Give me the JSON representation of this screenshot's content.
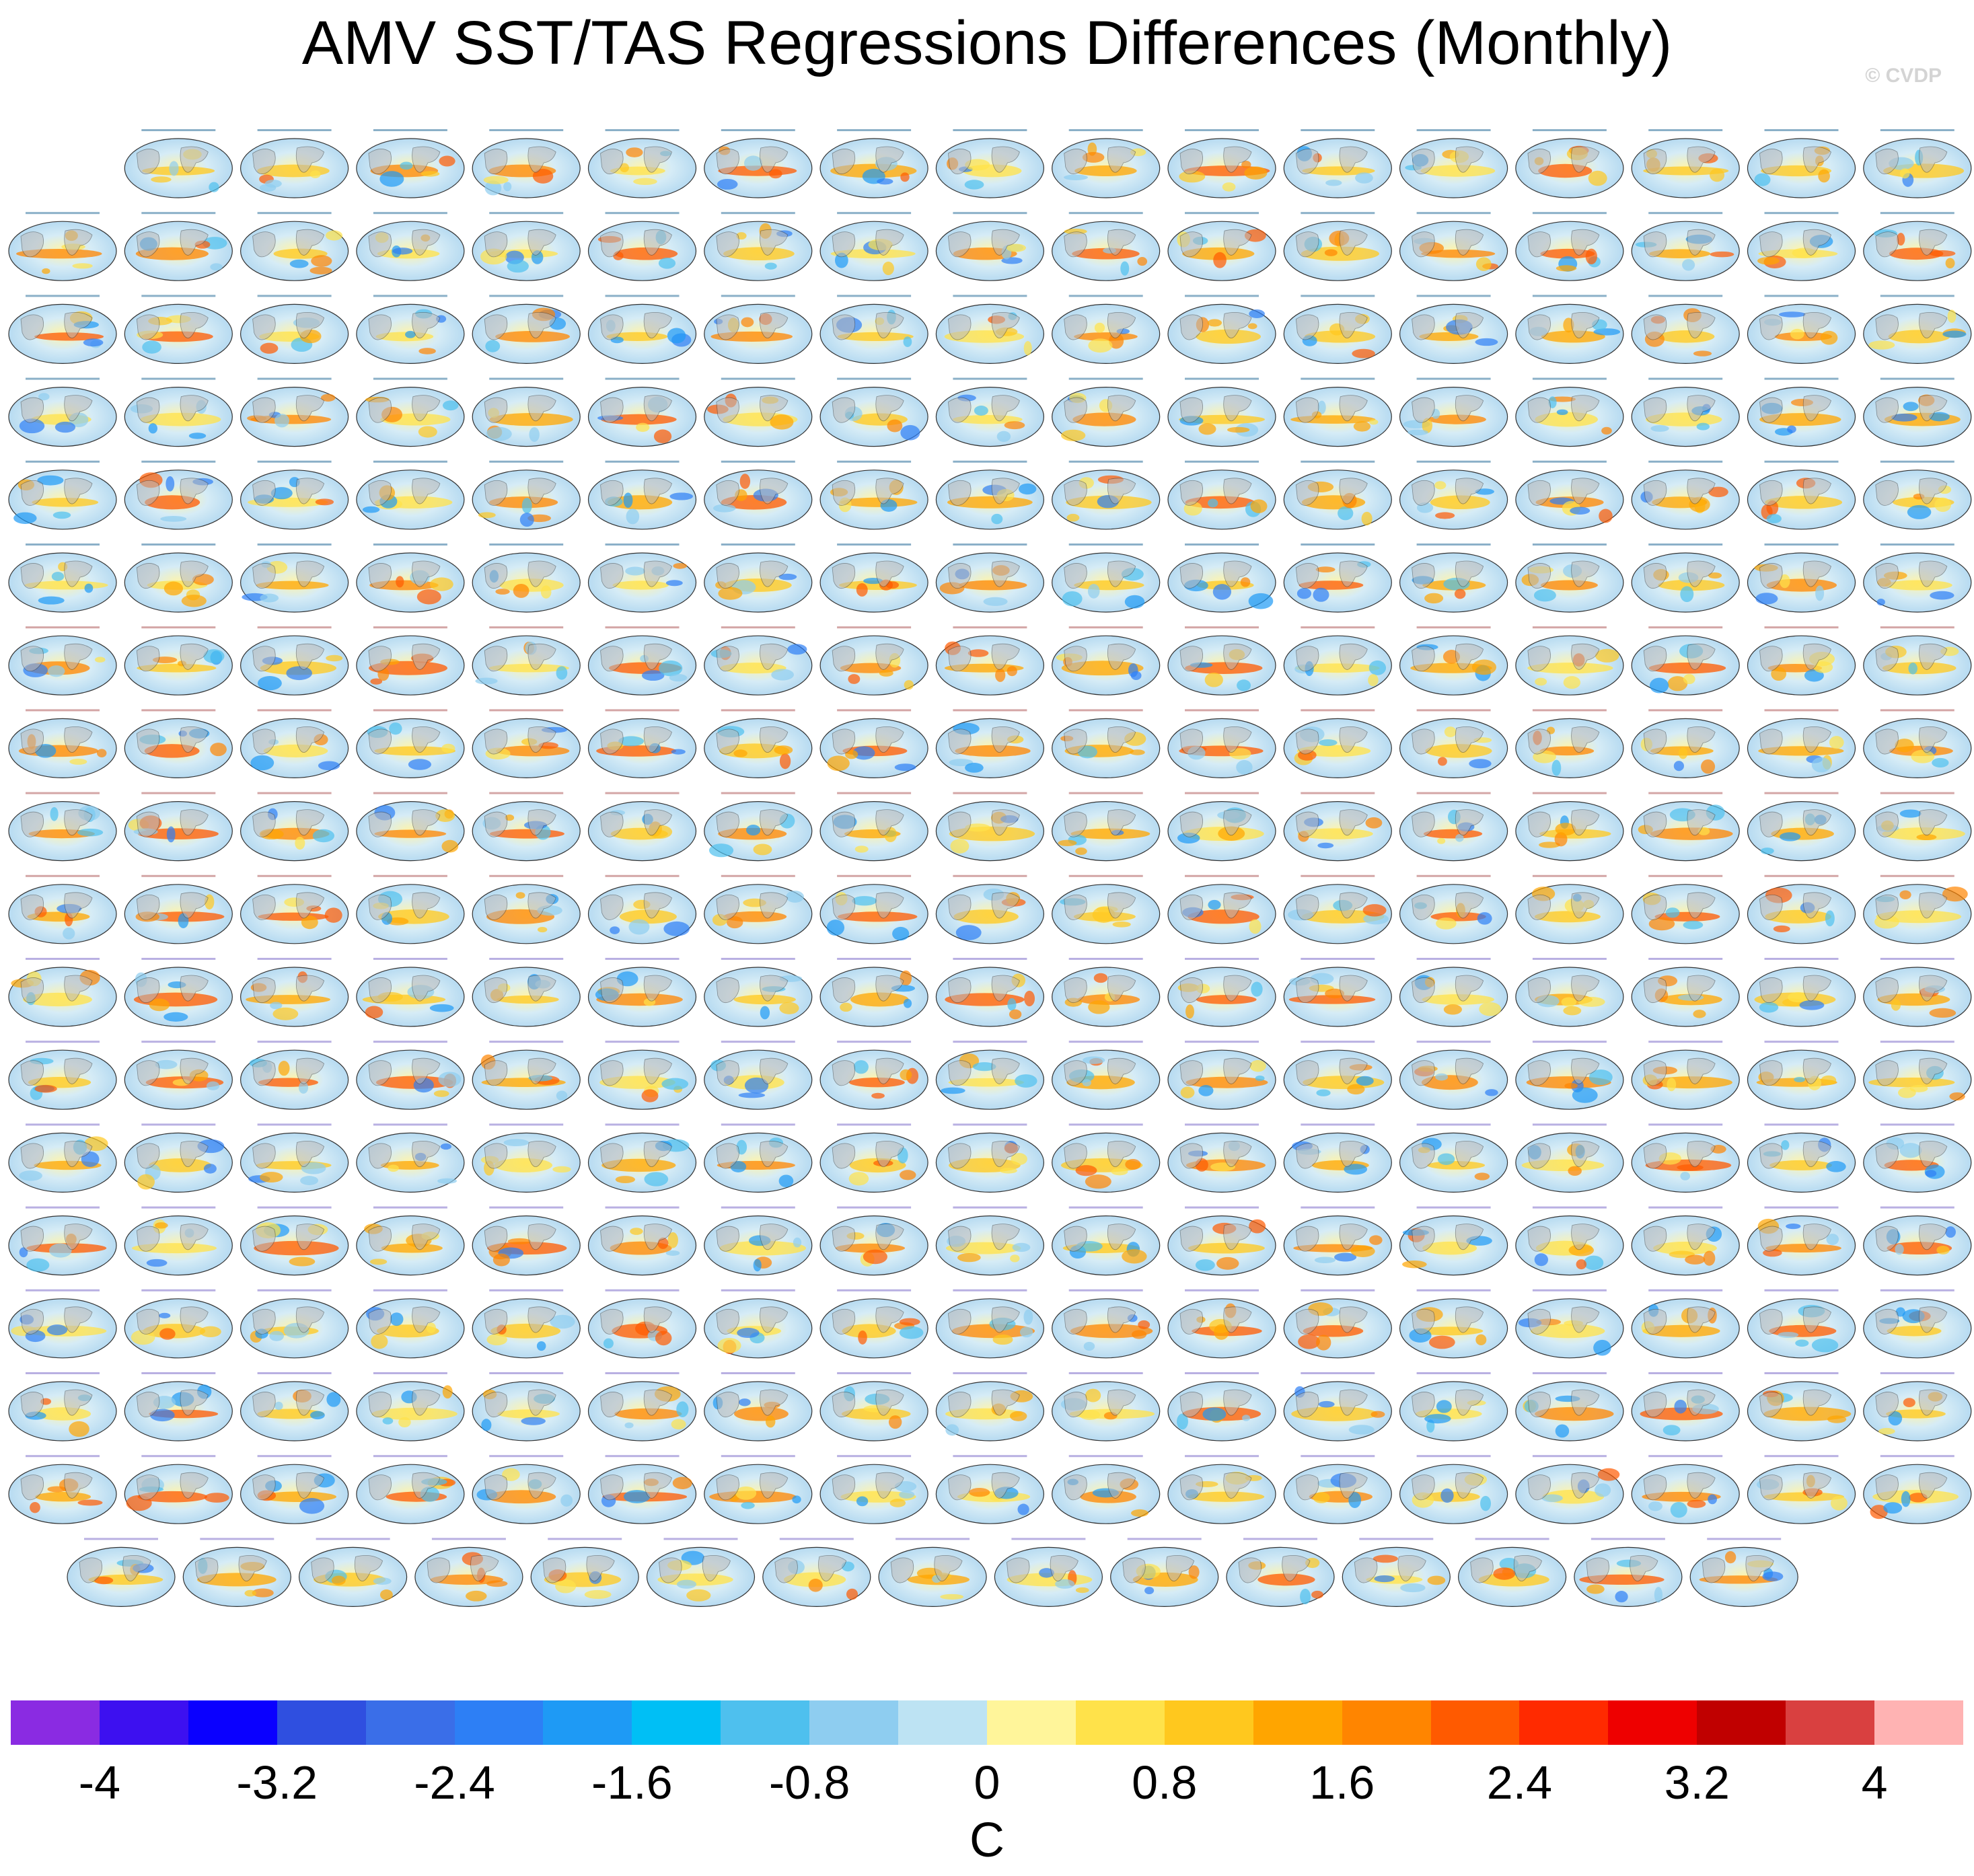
{
  "title": "AMV SST/TAS Regressions Differences (Monthly)",
  "watermark": "© CVDP",
  "chart_data": {
    "type": "heatmap",
    "description_kind": "panel grid of global map regression differences",
    "panel_rows": [
      16,
      17,
      17,
      17,
      17,
      17,
      17,
      17,
      17,
      17,
      17,
      17,
      17,
      17,
      17,
      17,
      17,
      15
    ],
    "colorbar": {
      "label": "C",
      "range": [
        -4.4,
        4.4
      ],
      "step": 0.4,
      "tick_values": [
        -4,
        -3.2,
        -2.4,
        -1.6,
        -0.8,
        0,
        0.8,
        1.6,
        2.4,
        3.2,
        4
      ],
      "tick_labels": [
        "-4",
        "-3.2",
        "-2.4",
        "-1.6",
        "-0.8",
        "0",
        "0.8",
        "1.6",
        "2.4",
        "3.2",
        "4"
      ],
      "colors": [
        "#8a2be2",
        "#3d10f0",
        "#0a00ff",
        "#2f4fe0",
        "#3a6ee8",
        "#2d7ff5",
        "#1e9af5",
        "#00bff5",
        "#4ec0ee",
        "#8ecdf0",
        "#bde3f3",
        "#fff59a",
        "#ffe24a",
        "#ffc81e",
        "#ffa500",
        "#ff8500",
        "#ff5a00",
        "#ff2a00",
        "#ee0000",
        "#c00000",
        "#d94040",
        "#ffb3b3"
      ]
    }
  }
}
